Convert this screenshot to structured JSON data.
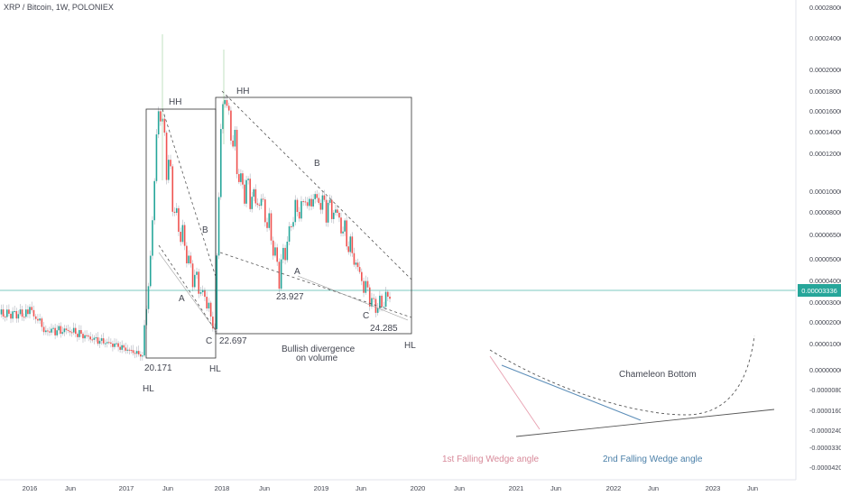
{
  "header": {
    "symbol_line": "XRP / Bitcoin, 1W, POLONIEX"
  },
  "current_price": {
    "value": 3.336e-05,
    "label": "0.00003336"
  },
  "colors": {
    "up": "#26a69a",
    "down": "#ef5350",
    "wick": "#b2b5be",
    "price_line": "#26a69a",
    "text": "#434651",
    "box": "#333333",
    "pink_line": "#e8a0b0",
    "blue_line": "#5b8db8",
    "label_pink": "#d88a9a",
    "label_blue": "#4a7fa8"
  },
  "chart_data": {
    "type": "candlestick",
    "title": "XRP / Bitcoin, 1W, POLONIEX",
    "yaxis": {
      "scale": "log-like",
      "ticks": [
        "0.00028000",
        "0.00024000",
        "0.00020000",
        "0.00018000",
        "0.00016000",
        "0.00014000",
        "0.00012000",
        "0.00010000",
        "0.00008000",
        "0.00006500",
        "0.00005000",
        "0.00004000",
        "0.00003000",
        "0.00002000",
        "0.00001000",
        "0.00000000",
        "-0.00000800",
        "-0.00001600",
        "-0.00002400",
        "-0.00003300",
        "-0.00004200"
      ]
    },
    "xaxis": {
      "ticks": [
        "2016",
        "Jun",
        "2017",
        "Jun",
        "2018",
        "Jun",
        "2019",
        "Jun",
        "2020",
        "Jun",
        "2021",
        "Jun",
        "2022",
        "Jun",
        "2023",
        "Jun"
      ]
    },
    "approx_close_path": [
      {
        "date": "2016-01",
        "close": 2.6e-05
      },
      {
        "date": "2016-03",
        "close": 1.6e-05
      },
      {
        "date": "2016-06",
        "close": 1.6e-05
      },
      {
        "date": "2016-09",
        "close": 1.2e-05
      },
      {
        "date": "2016-12",
        "close": 9e-06
      },
      {
        "date": "2017-03",
        "close": 5.5e-06
      },
      {
        "date": "2017-04",
        "close": 5e-05
      },
      {
        "date": "2017-05",
        "close": 0.000165
      },
      {
        "date": "2017-07",
        "close": 8e-05
      },
      {
        "date": "2017-09",
        "close": 4.5e-05
      },
      {
        "date": "2017-11",
        "close": 3e-05
      },
      {
        "date": "2017-12",
        "close": 1.5e-05
      },
      {
        "date": "2018-01",
        "close": 0.00018
      },
      {
        "date": "2018-03",
        "close": 0.000105
      },
      {
        "date": "2018-06",
        "close": 8.5e-05
      },
      {
        "date": "2018-08",
        "close": 4.2e-05
      },
      {
        "date": "2018-10",
        "close": 8e-05
      },
      {
        "date": "2018-12",
        "close": 9.5e-05
      },
      {
        "date": "2019-03",
        "close": 8e-05
      },
      {
        "date": "2019-06",
        "close": 4.2e-05
      },
      {
        "date": "2019-08",
        "close": 2.7e-05
      },
      {
        "date": "2019-10",
        "close": 3.4e-05
      }
    ],
    "annotations": [
      {
        "text": "HH"
      },
      {
        "text": "HH"
      },
      {
        "text": "B"
      },
      {
        "text": "B"
      },
      {
        "text": "A"
      },
      {
        "text": "A"
      },
      {
        "text": "C"
      },
      {
        "text": "C"
      },
      {
        "text": "HL"
      },
      {
        "text": "HL"
      },
      {
        "text": "HL"
      },
      {
        "text": "20.171"
      },
      {
        "text": "22.697"
      },
      {
        "text": "23.927"
      },
      {
        "text": "24.285"
      },
      {
        "text": "Bullish divergence"
      },
      {
        "text": "on volume"
      },
      {
        "text": "Chameleon Bottom"
      },
      {
        "text": "1st Falling Wedge angle"
      },
      {
        "text": "2nd Falling Wedge angle"
      }
    ]
  }
}
